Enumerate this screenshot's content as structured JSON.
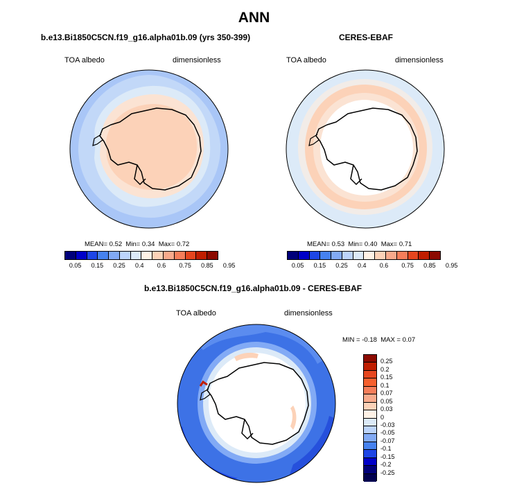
{
  "page_title": "ANN",
  "panels": {
    "model": {
      "subtitle": "b.e13.Bi1850C5CN.f19_g16.alpha01b.09 (yrs 350-399)",
      "variable": "TOA albedo",
      "units": "dimensionless",
      "stats": {
        "mean_label": "MEAN=",
        "mean": "0.52",
        "min_label": "Min=",
        "min": "0.34",
        "max_label": "Max=",
        "max": "0.72"
      }
    },
    "obs": {
      "subtitle": "CERES-EBAF",
      "variable": "TOA albedo",
      "units": "dimensionless",
      "stats": {
        "mean_label": "MEAN=",
        "mean": "0.53",
        "min_label": "Min=",
        "min": "0.40",
        "max_label": "Max=",
        "max": "0.71"
      }
    },
    "diff": {
      "subtitle": "b.e13.Bi1850C5CN.f19_g16.alpha01b.09 - CERES-EBAF",
      "variable": "TOA albedo",
      "units": "dimensionless",
      "stats": {
        "min_label": "MIN =",
        "min": "-0.18",
        "max_label": "MAX =",
        "max": "0.07"
      }
    }
  },
  "colorbar_abs": {
    "ticks": [
      "0.05",
      "0.15",
      "0.25",
      "0.4",
      "0.6",
      "0.75",
      "0.85",
      "0.95"
    ],
    "colors": [
      "#00007a",
      "#0000c8",
      "#1e46e6",
      "#4682ef",
      "#82aaf5",
      "#bcd4fb",
      "#dceaf8",
      "#fff2e6",
      "#fcd2b8",
      "#f8aa8c",
      "#f67e5a",
      "#e6461e",
      "#c01e00",
      "#8c0a00"
    ]
  },
  "colorbar_diff": {
    "ticks": [
      "0.25",
      "0.2",
      "0.15",
      "0.1",
      "0.07",
      "0.05",
      "0.03",
      "0",
      "-0.03",
      "-0.05",
      "-0.07",
      "-0.1",
      "-0.15",
      "-0.2",
      "-0.25"
    ],
    "colors": [
      "#8c0a00",
      "#c01e00",
      "#e6461e",
      "#f6602e",
      "#f67e5a",
      "#f8aa8c",
      "#fcd2b8",
      "#fff2e6",
      "#dceaf8",
      "#bcd4fb",
      "#82aaf5",
      "#4682ef",
      "#1e46e6",
      "#0000c8",
      "#00007a",
      "#000050"
    ]
  }
}
